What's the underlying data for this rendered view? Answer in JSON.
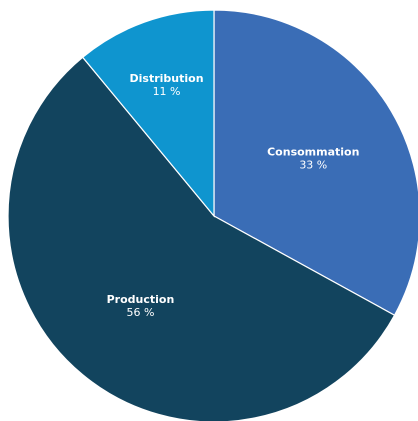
{
  "chart_data": {
    "type": "pie",
    "title": "",
    "slices": [
      {
        "label": "Consommation",
        "value": 33,
        "display": "33 %",
        "color": "#3a6db6"
      },
      {
        "label": "Production",
        "value": 56,
        "display": "56 %",
        "color": "#12445e"
      },
      {
        "label": "Distribution",
        "value": 11,
        "display": "11 %",
        "color": "#0f95cf"
      }
    ],
    "start_angle_deg": 0,
    "direction": "clockwise",
    "legend": "none"
  },
  "style": {
    "slice_border_color": "#ffffff",
    "label_color": "#ffffff"
  }
}
